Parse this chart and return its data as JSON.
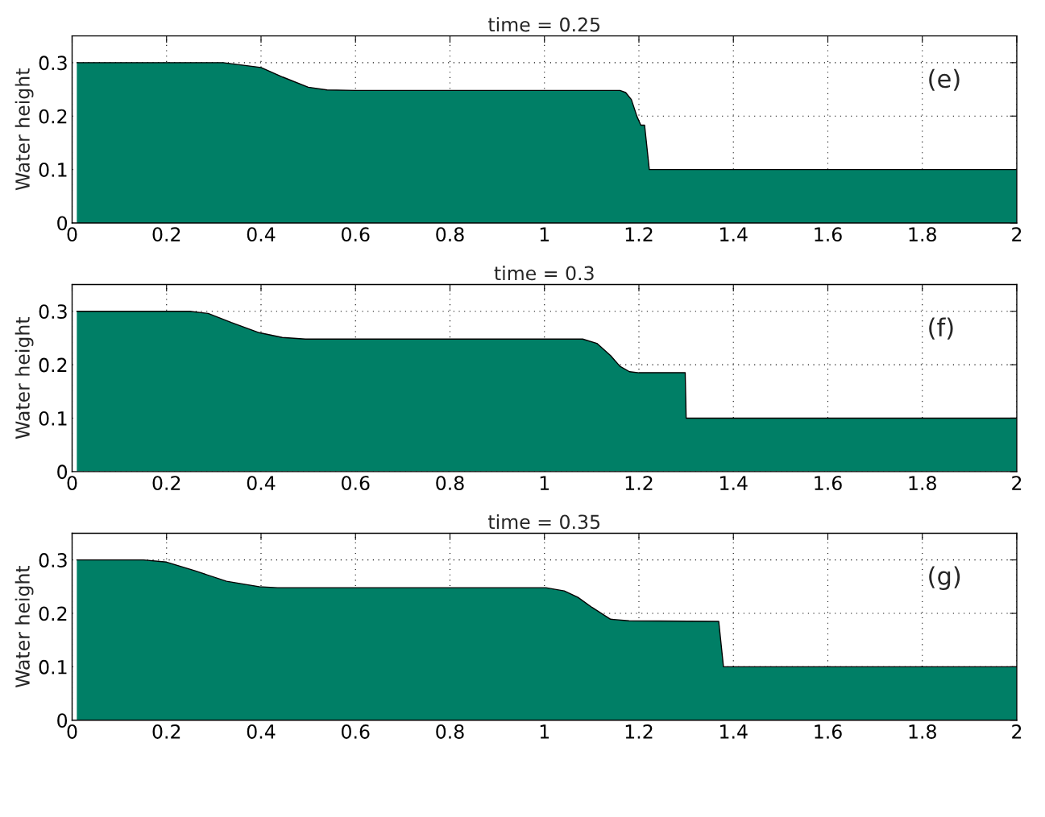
{
  "chart_data": [
    {
      "type": "area",
      "title": "time = 0.25",
      "ylabel": "Water height",
      "annotations": [
        "(e)"
      ],
      "x": [
        0.01,
        0.32,
        0.4,
        0.446,
        0.5,
        0.54,
        0.6,
        1.16,
        1.172,
        1.184,
        1.196,
        1.204,
        1.212,
        1.222,
        2.0
      ],
      "series": [
        {
          "color": "#007f66",
          "values": [
            0.3,
            0.3,
            0.291,
            0.273,
            0.254,
            0.249,
            0.248,
            0.248,
            0.244,
            0.231,
            0.199,
            0.183,
            0.183,
            0.1,
            0.1
          ]
        }
      ],
      "xlim": [
        0,
        2
      ],
      "ylim": [
        0,
        0.35
      ],
      "xticks": [
        0,
        0.2,
        0.4,
        0.6,
        0.8,
        1,
        1.2,
        1.4,
        1.6,
        1.8,
        2
      ],
      "yticks": [
        0,
        0.1,
        0.2,
        0.3
      ],
      "grid": true
    },
    {
      "type": "area",
      "title": "time = 0.3",
      "ylabel": "Water height",
      "annotations": [
        "(f)"
      ],
      "x": [
        0.01,
        0.249,
        0.288,
        0.337,
        0.396,
        0.445,
        0.494,
        1.081,
        1.111,
        1.14,
        1.16,
        1.18,
        1.2,
        1.298,
        1.3,
        2.0
      ],
      "series": [
        {
          "color": "#007f66",
          "values": [
            0.3,
            0.3,
            0.296,
            0.279,
            0.26,
            0.251,
            0.248,
            0.248,
            0.24,
            0.217,
            0.197,
            0.187,
            0.185,
            0.185,
            0.1,
            0.1
          ]
        }
      ],
      "xlim": [
        0,
        2
      ],
      "ylim": [
        0,
        0.35
      ],
      "xticks": [
        0,
        0.2,
        0.4,
        0.6,
        0.8,
        1,
        1.2,
        1.4,
        1.6,
        1.8,
        2
      ],
      "yticks": [
        0,
        0.1,
        0.2,
        0.3
      ],
      "grid": true
    },
    {
      "type": "area",
      "title": "time = 0.35",
      "ylabel": "Water height",
      "annotations": [
        "(g)"
      ],
      "x": [
        0.01,
        0.151,
        0.2,
        0.259,
        0.327,
        0.396,
        0.435,
        1.003,
        1.042,
        1.071,
        1.101,
        1.14,
        1.179,
        1.369,
        1.379,
        2.0
      ],
      "series": [
        {
          "color": "#007f66",
          "values": [
            0.3,
            0.3,
            0.296,
            0.28,
            0.26,
            0.25,
            0.248,
            0.248,
            0.242,
            0.23,
            0.211,
            0.189,
            0.186,
            0.185,
            0.1,
            0.1
          ]
        }
      ],
      "xlim": [
        0,
        2
      ],
      "ylim": [
        0,
        0.35
      ],
      "xticks": [
        0,
        0.2,
        0.4,
        0.6,
        0.8,
        1,
        1.2,
        1.4,
        1.6,
        1.8,
        2
      ],
      "yticks": [
        0,
        0.1,
        0.2,
        0.3
      ],
      "grid": true
    }
  ]
}
